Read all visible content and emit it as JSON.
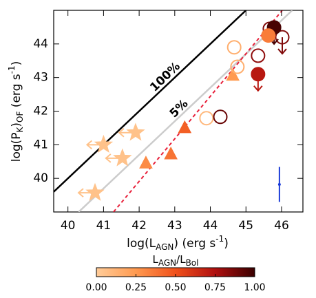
{
  "chart_data": {
    "type": "scatter",
    "xlabel": [
      "log(L",
      "AGN",
      ") (erg s",
      "-1",
      ")"
    ],
    "ylabel": [
      "log(P",
      "K",
      ")",
      "OF",
      " (erg s",
      "-1",
      ")"
    ],
    "xlim": [
      39.6,
      46.6
    ],
    "ylim": [
      39,
      45
    ],
    "xticks": [
      40,
      41,
      42,
      43,
      44,
      45,
      46
    ],
    "yticks": [
      40,
      41,
      42,
      43,
      44
    ],
    "annotations": [
      {
        "text": "100%",
        "color": "#000000"
      },
      {
        "text": "5%",
        "color": "#999999"
      }
    ],
    "lines": [
      {
        "x": [
          39.6,
          45.0
        ],
        "y": [
          39.6,
          45.0
        ],
        "color": "#000000",
        "dash": false
      },
      {
        "x": [
          40.3,
          46.3
        ],
        "y": [
          39.0,
          45.0
        ],
        "color": "#cccccc",
        "dash": false
      },
      {
        "x": [
          41.28,
          46.02
        ],
        "y": [
          39.0,
          45.0
        ],
        "color": "#e8203a",
        "dash": true
      }
    ],
    "colorbar": {
      "label": [
        "L",
        "AGN",
        "/L",
        "Bol"
      ],
      "lim": [
        0,
        1
      ],
      "ticks": [
        {
          "value": 0,
          "label": "0.00"
        },
        {
          "value": 0.25,
          "label": "0.25"
        },
        {
          "value": 0.5,
          "label": "0.50"
        },
        {
          "value": 0.75,
          "label": "0.75"
        },
        {
          "value": 1,
          "label": "1.00"
        }
      ],
      "colormap": [
        "#ffcc99",
        "#ff9a50",
        "#f0501a",
        "#b01010",
        "#3a0000"
      ]
    },
    "series": [
      {
        "marker": "star",
        "filled": true,
        "limit": "x",
        "x": [
          41.0,
          41.9,
          41.53,
          40.76
        ],
        "y": [
          41.0,
          41.36,
          40.6,
          39.57
        ],
        "c": [
          0.05,
          0.05,
          0.05,
          0.05
        ]
      },
      {
        "marker": "triangle",
        "filled": true,
        "limit": null,
        "x": [
          42.19,
          42.89,
          43.28,
          44.63
        ],
        "y": [
          40.45,
          40.72,
          41.5,
          43.06
        ],
        "c": [
          0.3,
          0.38,
          0.45,
          0.25
        ]
      },
      {
        "marker": "circle",
        "filled": false,
        "limit": null,
        "x": [
          43.89,
          44.28,
          44.67,
          44.76,
          45.34,
          45.67
        ],
        "y": [
          41.79,
          41.83,
          43.9,
          43.32,
          43.65,
          44.45
        ],
        "c": [
          0.1,
          0.9,
          0.15,
          0.15,
          0.82,
          0.85
        ]
      },
      {
        "marker": "circle",
        "filled": false,
        "limit": "y",
        "x": [
          46.02
        ],
        "y": [
          44.2
        ],
        "c": [
          0.85
        ]
      },
      {
        "marker": "circle",
        "filled": true,
        "limit": "y",
        "x": [
          45.34,
          45.79
        ],
        "y": [
          43.1,
          44.49
        ],
        "c": [
          0.72,
          0.97
        ]
      },
      {
        "marker": "circle",
        "filled": true,
        "limit": null,
        "x": [
          45.63
        ],
        "y": [
          44.25
        ],
        "c": [
          0.35
        ]
      }
    ],
    "errorbar": {
      "x": 45.94,
      "y": 39.82,
      "error": 0.52,
      "color": "#1a3ad8"
    }
  }
}
